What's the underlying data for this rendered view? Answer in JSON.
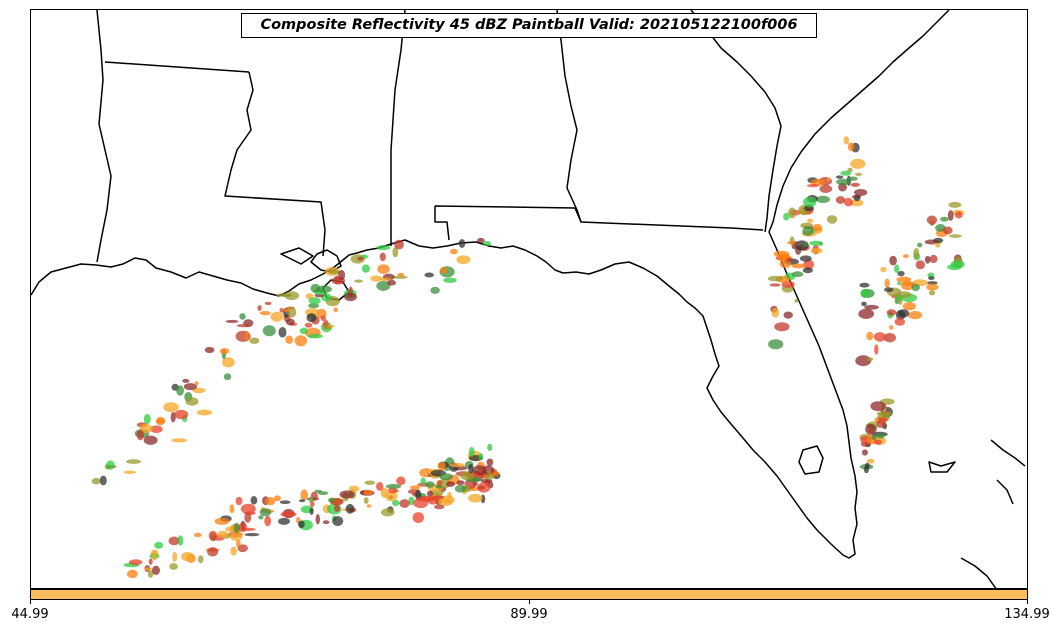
{
  "title": "Composite Reflectivity 45 dBZ Paintball Valid: 202105122100f006",
  "colorbar": {
    "color": "#fdbe5f",
    "ticks": [
      "44.99",
      "89.99",
      "134.99"
    ]
  },
  "paintball_colors": [
    "#e8412b",
    "#f5a623",
    "#8b2a2a",
    "#3a8f3a",
    "#2ecc40",
    "#9a9a2a",
    "#333333",
    "#ff7f0e",
    "#c0392b"
  ],
  "map": {
    "region": "US Gulf Coast and Florida",
    "borders": "state boundaries and coastlines in black"
  }
}
